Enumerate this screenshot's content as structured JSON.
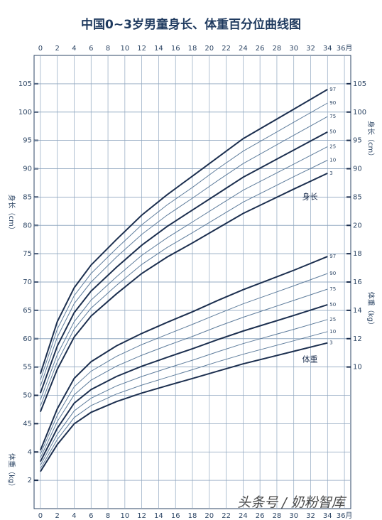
{
  "chart_data": {
    "type": "line",
    "title": "中国0~3岁男童身长、体重百分位曲线图",
    "x": [
      0,
      2,
      4,
      6,
      9,
      12,
      15,
      18,
      21,
      24,
      30,
      34
    ],
    "xlim": [
      -0.75,
      36.75
    ],
    "xticks": [
      0,
      2,
      4,
      6,
      8,
      10,
      12,
      14,
      16,
      18,
      20,
      22,
      24,
      26,
      28,
      30,
      32,
      34,
      {
        "value": 36,
        "label": "36月"
      }
    ],
    "ylim": [
      30,
      110
    ],
    "yticks": [
      45,
      50,
      55,
      60,
      65,
      70,
      75,
      80,
      85,
      90,
      95,
      100,
      105
    ],
    "y_right_ticks": [
      85,
      90,
      95,
      100,
      105
    ],
    "y2lim": [
      0,
      32
    ],
    "y2ticks": [
      10,
      12,
      14,
      16,
      18,
      20
    ],
    "y2_left_ticks": [
      2,
      4
    ],
    "y_label": "身长（cm）",
    "y2_label": "体重（kg）",
    "grid": true,
    "annotations": [
      {
        "text": "身长",
        "x": 31,
        "y": 85
      },
      {
        "text": "体重",
        "x": 31,
        "y2": 10.5
      }
    ],
    "watermark": "头条号 / 奶粉智库",
    "series": [
      {
        "name": "97",
        "color": "#1c2f4f",
        "width": 2,
        "values": [
          53.8,
          63.0,
          69.0,
          73.0,
          77.5,
          81.8,
          85.4,
          88.7,
          92.0,
          95.3,
          100.5,
          104.0
        ]
      },
      {
        "name": "90",
        "color": "#5f7d9c",
        "width": 1,
        "values": [
          52.7,
          61.7,
          67.6,
          71.5,
          75.9,
          80.1,
          83.6,
          86.7,
          90.0,
          93.1,
          98.2,
          101.6
        ]
      },
      {
        "name": "75",
        "color": "#5f7d9c",
        "width": 1,
        "values": [
          51.6,
          60.3,
          66.2,
          70.0,
          74.4,
          78.4,
          81.8,
          84.8,
          87.9,
          90.9,
          95.9,
          99.2
        ]
      },
      {
        "name": "50",
        "color": "#1c2f4f",
        "width": 2,
        "values": [
          50.4,
          58.7,
          64.6,
          68.4,
          72.6,
          76.5,
          79.8,
          82.7,
          85.6,
          88.5,
          93.3,
          96.5
        ]
      },
      {
        "name": "25",
        "color": "#5f7d9c",
        "width": 1,
        "values": [
          49.2,
          57.2,
          63.0,
          66.8,
          70.9,
          74.7,
          77.8,
          80.6,
          83.4,
          86.2,
          90.8,
          93.9
        ]
      },
      {
        "name": "10",
        "color": "#5f7d9c",
        "width": 1,
        "values": [
          48.1,
          55.9,
          61.7,
          65.4,
          69.4,
          73.1,
          76.1,
          78.7,
          81.4,
          84.1,
          88.6,
          91.5
        ]
      },
      {
        "name": "3",
        "color": "#1c2f4f",
        "width": 2,
        "values": [
          47.1,
          54.6,
          60.3,
          64.0,
          67.9,
          71.5,
          74.4,
          76.9,
          79.5,
          82.1,
          86.4,
          89.2
        ]
      },
      {
        "name": "97",
        "axis": "y2",
        "color": "#1c2f4f",
        "width": 2,
        "values": [
          4.12,
          7.05,
          9.2,
          10.37,
          11.49,
          12.37,
          13.15,
          13.9,
          14.7,
          15.46,
          16.83,
          17.8
        ]
      },
      {
        "name": "90",
        "axis": "y2",
        "color": "#5f7d9c",
        "width": 1,
        "values": [
          3.85,
          6.59,
          8.61,
          9.7,
          10.75,
          11.58,
          12.3,
          13.01,
          13.75,
          14.46,
          15.73,
          16.6
        ]
      },
      {
        "name": "75",
        "axis": "y2",
        "color": "#5f7d9c",
        "width": 1,
        "values": [
          3.59,
          6.15,
          8.04,
          9.07,
          10.06,
          10.83,
          11.51,
          12.16,
          12.86,
          13.51,
          14.7,
          15.5
        ]
      },
      {
        "name": "50",
        "axis": "y2",
        "color": "#1c2f4f",
        "width": 2,
        "values": [
          3.32,
          5.68,
          7.45,
          8.41,
          9.33,
          10.05,
          10.68,
          11.29,
          11.93,
          12.54,
          13.64,
          14.4
        ]
      },
      {
        "name": "25",
        "axis": "y2",
        "color": "#5f7d9c",
        "width": 1,
        "values": [
          3.06,
          5.25,
          6.9,
          7.8,
          8.66,
          9.33,
          9.91,
          10.48,
          11.08,
          11.65,
          12.66,
          13.35
        ]
      },
      {
        "name": "10",
        "axis": "y2",
        "color": "#5f7d9c",
        "width": 1,
        "values": [
          2.83,
          4.88,
          6.43,
          7.28,
          8.09,
          8.72,
          9.27,
          9.81,
          10.37,
          10.9,
          11.85,
          12.5
        ]
      },
      {
        "name": "3",
        "axis": "y2",
        "color": "#1c2f4f",
        "width": 2,
        "values": [
          2.62,
          4.53,
          5.99,
          6.8,
          7.56,
          8.16,
          8.68,
          9.19,
          9.71,
          10.22,
          11.11,
          11.7
        ]
      }
    ]
  }
}
